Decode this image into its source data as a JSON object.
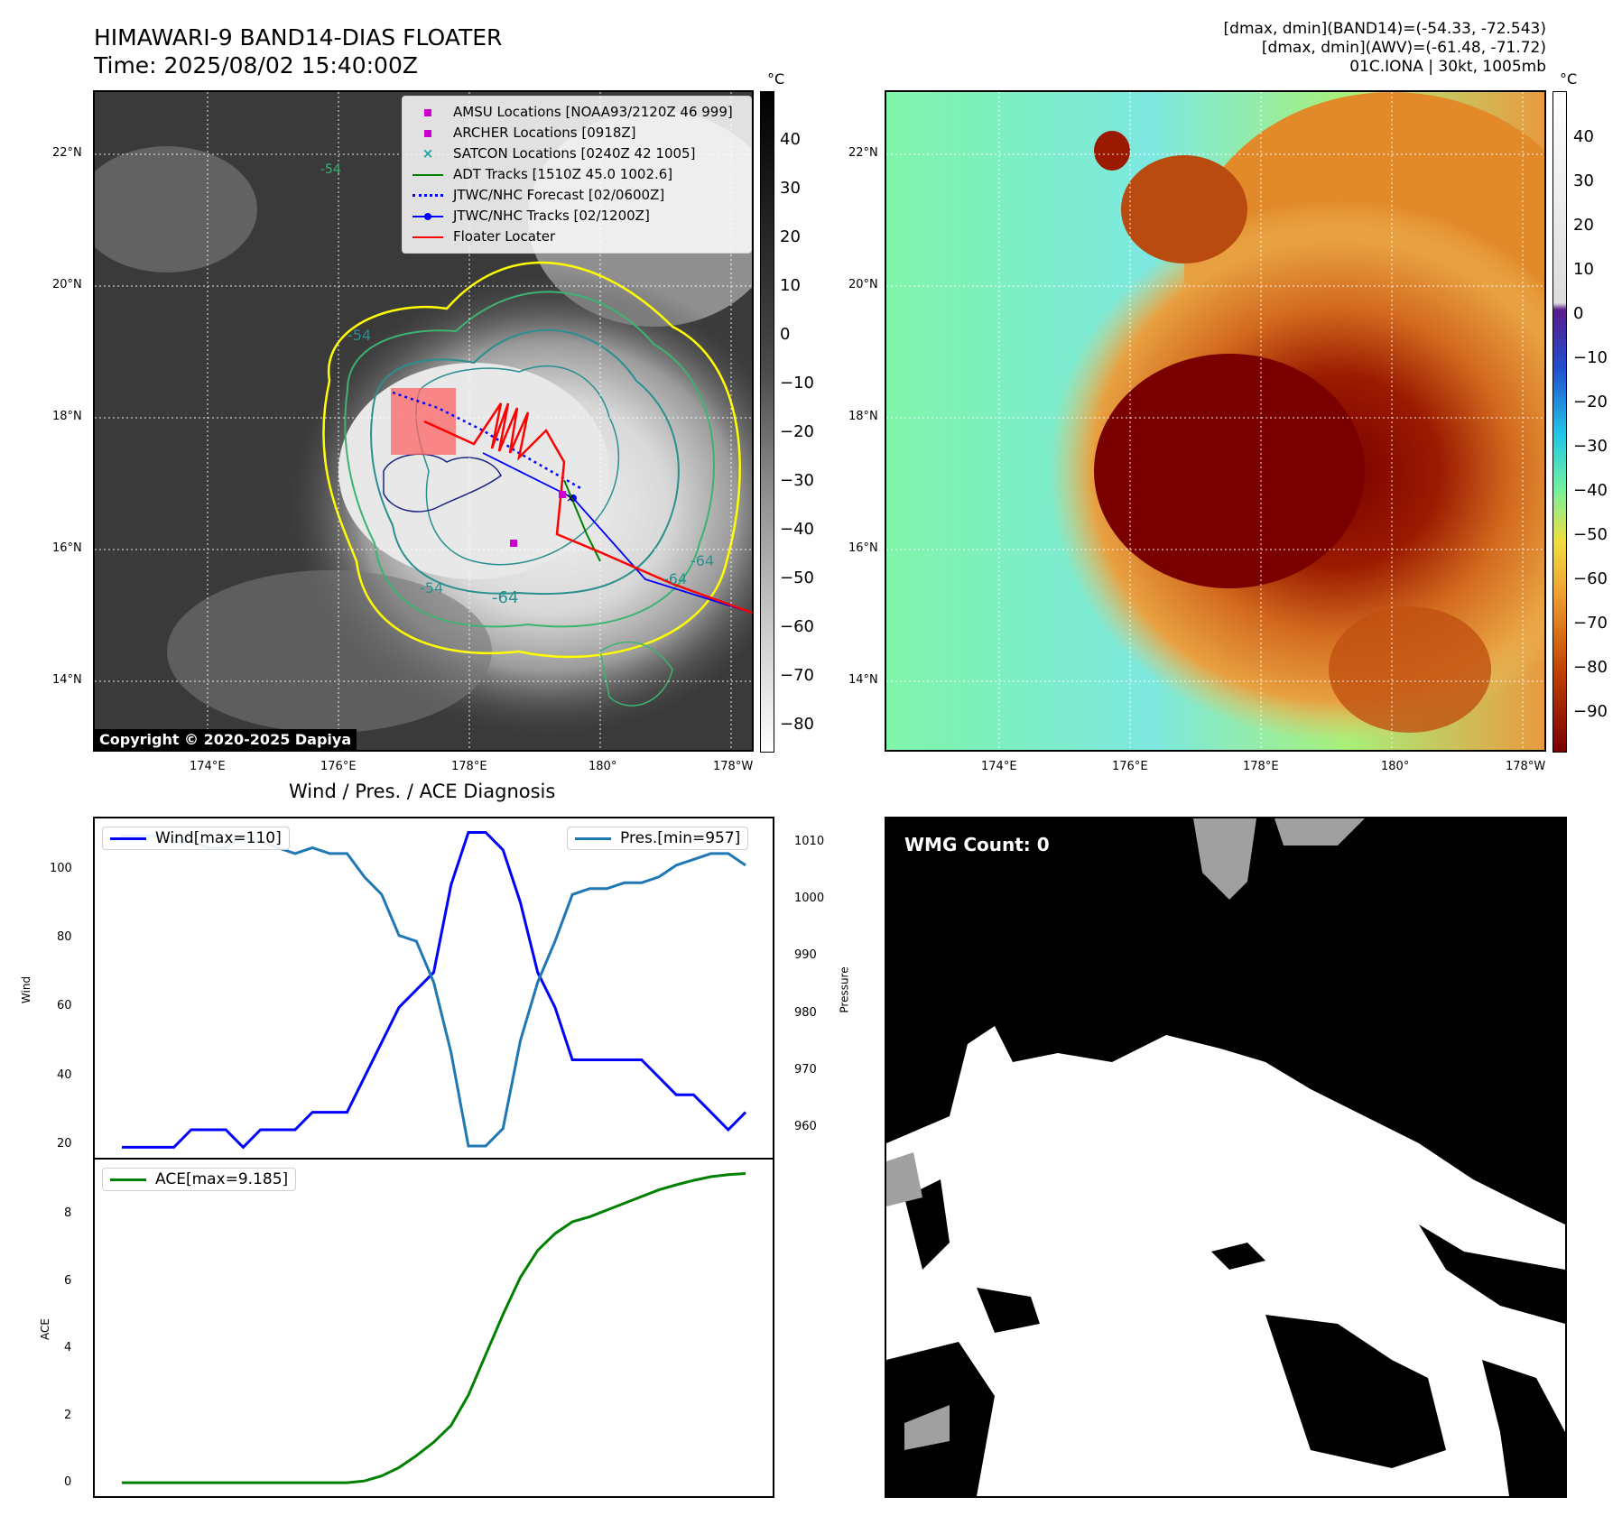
{
  "header": {
    "title_line1": "HIMAWARI-9 BAND14-DIAS FLOATER",
    "title_line2": "Time: 2025/08/02 15:40:00Z",
    "stats_line1": "[dmax, dmin](BAND14)=(-54.33, -72.543)",
    "stats_line2": "[dmax, dmin](AWV)=(-61.48, -71.72)",
    "stats_line3": "01C.IONA | 30kt, 1005mb"
  },
  "map": {
    "lat_labels": [
      "22°N",
      "20°N",
      "18°N",
      "16°N",
      "14°N"
    ],
    "lon_labels": [
      "174°E",
      "176°E",
      "178°E",
      "180°",
      "178°W"
    ],
    "contour_labels": [
      "-54",
      "-64",
      "-54",
      "-64",
      "-64",
      "-54"
    ],
    "copyright": "Copyright © 2020-2025 Dapiya"
  },
  "legend": {
    "amsu": "AMSU Locations [NOAA93/2120Z 46 999]",
    "archer": "ARCHER Locations [0918Z]",
    "satcon": "SATCON Locations [0240Z 42 1005]",
    "adt": "ADT Tracks [1510Z 45.0 1002.6]",
    "forecast": "JTWC/NHC Forecast [02/0600Z]",
    "tracks": "JTWC/NHC Tracks [02/1200Z]",
    "floater": "Floater Locater"
  },
  "colorbars": {
    "unit": "°C",
    "bw_ticks": [
      "40",
      "30",
      "20",
      "10",
      "0",
      "−10",
      "−20",
      "−30",
      "−40",
      "−50",
      "−60",
      "−70",
      "−80"
    ],
    "color_ticks": [
      "40",
      "30",
      "20",
      "10",
      "0",
      "−10",
      "−20",
      "−30",
      "−40",
      "−50",
      "−60",
      "−70",
      "−80",
      "−90"
    ]
  },
  "diag": {
    "title": "Wind / Pres. / ACE Diagnosis",
    "wind_legend": "Wind[max=110]",
    "pres_legend": "Pres.[min=957]",
    "ace_legend": "ACE[max=9.185]",
    "wind_axis_label": "Wind",
    "pres_axis_label": "Pressure",
    "ace_axis_label": "ACE",
    "wind_ticks": [
      "100",
      "80",
      "60",
      "40",
      "20"
    ],
    "pres_ticks": [
      "1010",
      "1000",
      "990",
      "980",
      "970",
      "960"
    ],
    "ace_ticks": [
      "8",
      "6",
      "4",
      "2",
      "0"
    ]
  },
  "wmg": {
    "label": "WMG Count: 0"
  },
  "colors": {
    "wind": "#0000ff",
    "pressure": "#1f77b4",
    "ace": "#008000",
    "floater": "#ff0000",
    "contour_yellow": "#ffff00",
    "contour_green": "#3cb371",
    "contour_teal": "#2a8f8f",
    "contour_navy": "#1a237e"
  },
  "chart_data": [
    {
      "type": "line",
      "title": "Wind / Pres. / ACE Diagnosis",
      "ylabel": "Wind",
      "ylim": [
        17,
        114
      ],
      "series": [
        {
          "name": "Wind[max=110]",
          "axis": "left",
          "values": [
            20,
            20,
            20,
            20,
            25,
            25,
            25,
            20,
            25,
            25,
            25,
            30,
            30,
            30,
            40,
            50,
            60,
            65,
            70,
            95,
            110,
            110,
            105,
            90,
            70,
            60,
            45,
            45,
            45,
            45,
            45,
            40,
            35,
            35,
            30,
            25,
            30
          ]
        },
        {
          "name": "Pres.[min=957]",
          "axis": "right",
          "ylabel": "Pressure",
          "ylim": [
            955,
            1013
          ],
          "values": [
            1010,
            1010,
            1010,
            1009,
            1009,
            1008,
            1008,
            1010,
            1009,
            1008,
            1007,
            1008,
            1007,
            1007,
            1003,
            1000,
            993,
            992,
            985,
            973,
            957,
            957,
            960,
            975,
            985,
            992,
            1000,
            1001,
            1001,
            1002,
            1002,
            1003,
            1005,
            1006,
            1007,
            1007,
            1005
          ]
        }
      ]
    },
    {
      "type": "line",
      "ylabel": "ACE",
      "ylim": [
        -0.4,
        9.6
      ],
      "series": [
        {
          "name": "ACE[max=9.185]",
          "values": [
            0,
            0,
            0,
            0,
            0,
            0,
            0,
            0,
            0,
            0,
            0,
            0,
            0,
            0,
            0.05,
            0.2,
            0.45,
            0.8,
            1.2,
            1.7,
            2.6,
            3.8,
            5.0,
            6.1,
            6.9,
            7.4,
            7.75,
            7.9,
            8.1,
            8.3,
            8.5,
            8.7,
            8.85,
            8.98,
            9.09,
            9.15,
            9.185
          ]
        }
      ]
    }
  ]
}
